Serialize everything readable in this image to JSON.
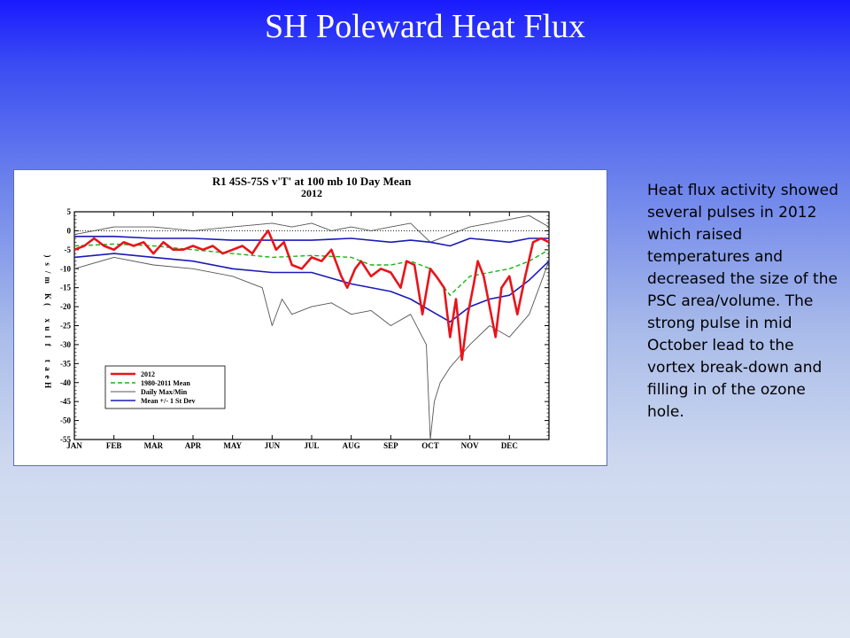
{
  "slide": {
    "title": "SH Poleward Heat Flux",
    "text": "Heat flux activity showed several pulses in 2012 which raised temperatures and decreased the size of the PSC area/volume. The strong pulse in mid October lead to the vortex break-down and filling in of the ozone hole."
  },
  "chart_data": {
    "type": "line",
    "title": "R1 45S-75S v'T' at 100 mb 10 Day Mean",
    "subtitle": "2012",
    "ylabel": "Heat flux (K m/s)",
    "xlabel": "",
    "ylim": [
      -55,
      5
    ],
    "yticks": [
      5,
      0,
      -5,
      -10,
      -15,
      -20,
      -25,
      -30,
      -35,
      -40,
      -45,
      -50,
      -55
    ],
    "xlim": [
      0,
      12
    ],
    "month_labels": [
      "JAN",
      "FEB",
      "MAR",
      "APR",
      "MAY",
      "JUN",
      "JUL",
      "AUG",
      "SEP",
      "OCT",
      "NOV",
      "DEC"
    ],
    "reference_line": 0,
    "legend_position": "bottom-left",
    "colors": {
      "obs_2012": "#e8141b",
      "climatology": "#18b418",
      "extremes": "#555555",
      "stdev": "#1a1ab8"
    },
    "series": [
      {
        "name": "2012",
        "style": "thick red solid",
        "x": [
          0,
          0.25,
          0.5,
          0.75,
          1,
          1.25,
          1.5,
          1.75,
          2,
          2.25,
          2.5,
          2.75,
          3,
          3.25,
          3.5,
          3.75,
          4,
          4.25,
          4.5,
          4.75,
          4.9,
          5.1,
          5.3,
          5.5,
          5.75,
          6,
          6.25,
          6.5,
          6.75,
          6.9,
          7.1,
          7.25,
          7.5,
          7.75,
          8,
          8.25,
          8.4,
          8.6,
          8.8,
          9,
          9.15,
          9.35,
          9.5,
          9.65,
          9.8,
          9.95,
          10.1,
          10.2,
          10.35,
          10.5,
          10.65,
          10.8,
          11,
          11.2,
          11.4,
          11.6,
          11.8,
          12
        ],
        "values": [
          -5,
          -4,
          -2,
          -4,
          -5,
          -3,
          -4,
          -3,
          -6,
          -3,
          -5,
          -5,
          -4,
          -5,
          -4,
          -6,
          -5,
          -4,
          -6,
          -2,
          0,
          -5,
          -3,
          -9,
          -10,
          -7,
          -8,
          -5,
          -12,
          -15,
          -10,
          -8,
          -12,
          -10,
          -11,
          -15,
          -8,
          -9,
          -22,
          -10,
          -12,
          -15,
          -28,
          -18,
          -34,
          -22,
          -14,
          -8,
          -12,
          -20,
          -28,
          -15,
          -12,
          -22,
          -12,
          -3,
          -2,
          -3
        ]
      },
      {
        "name": "1980-2011 Mean",
        "style": "green dashed",
        "x": [
          0,
          1,
          2,
          3,
          4,
          5,
          6,
          7,
          7.5,
          8,
          8.5,
          9,
          9.5,
          10,
          10.5,
          11,
          11.5,
          12
        ],
        "values": [
          -4,
          -3.5,
          -4,
          -5,
          -6,
          -7,
          -6.5,
          -7,
          -9,
          -9,
          -8,
          -10,
          -17,
          -12,
          -11,
          -10,
          -8,
          -5
        ]
      },
      {
        "name": "Daily Max/Min",
        "style": "thin gray solid (max)",
        "x": [
          0,
          1,
          2,
          3,
          4,
          5,
          5.5,
          6,
          6.5,
          7,
          7.5,
          8,
          8.5,
          9,
          9.5,
          10,
          10.5,
          11,
          11.5,
          12
        ],
        "values": [
          -1,
          1,
          1,
          0,
          1,
          2,
          1,
          2,
          0,
          1,
          0,
          1,
          2,
          -3,
          -1,
          1,
          2,
          3,
          4,
          1
        ]
      },
      {
        "name": "Daily Max/Min (min)",
        "style": "thin gray solid (min)",
        "x": [
          0,
          1,
          2,
          3,
          4,
          4.75,
          5,
          5.25,
          5.5,
          6,
          6.5,
          7,
          7.5,
          8,
          8.5,
          8.9,
          9,
          9.1,
          9.25,
          9.5,
          10,
          10.5,
          11,
          11.5,
          12
        ],
        "values": [
          -10,
          -7,
          -9,
          -10,
          -12,
          -15,
          -25,
          -18,
          -22,
          -20,
          -19,
          -22,
          -21,
          -25,
          -22,
          -30,
          -55,
          -45,
          -40,
          -36,
          -30,
          -25,
          -28,
          -22,
          -8
        ]
      },
      {
        "name": "Mean +/- 1 St Dev",
        "style": "blue solid (upper)",
        "x": [
          0,
          1,
          2,
          3,
          4,
          5,
          6,
          7,
          8,
          8.5,
          9,
          9.5,
          10,
          10.5,
          11,
          11.5,
          12
        ],
        "values": [
          -1.5,
          -1.5,
          -2,
          -2,
          -2.5,
          -2.5,
          -2.5,
          -2,
          -3,
          -2.5,
          -3,
          -4,
          -2,
          -2.5,
          -3,
          -2,
          -2
        ]
      },
      {
        "name": "Mean +/- 1 St Dev (lower)",
        "style": "blue solid (lower)",
        "x": [
          0,
          1,
          2,
          3,
          4,
          5,
          6,
          7,
          8,
          8.5,
          9,
          9.5,
          10,
          10.5,
          11,
          11.5,
          12
        ],
        "values": [
          -7,
          -6,
          -7,
          -8,
          -10,
          -11,
          -11,
          -14,
          -16,
          -18,
          -21,
          -24,
          -20,
          -18,
          -17,
          -13,
          -8
        ]
      }
    ],
    "legend": [
      {
        "label": "2012"
      },
      {
        "label": "1980-2011 Mean"
      },
      {
        "label": "Daily Max/Min"
      },
      {
        "label": "Mean +/- 1 St Dev"
      }
    ]
  }
}
